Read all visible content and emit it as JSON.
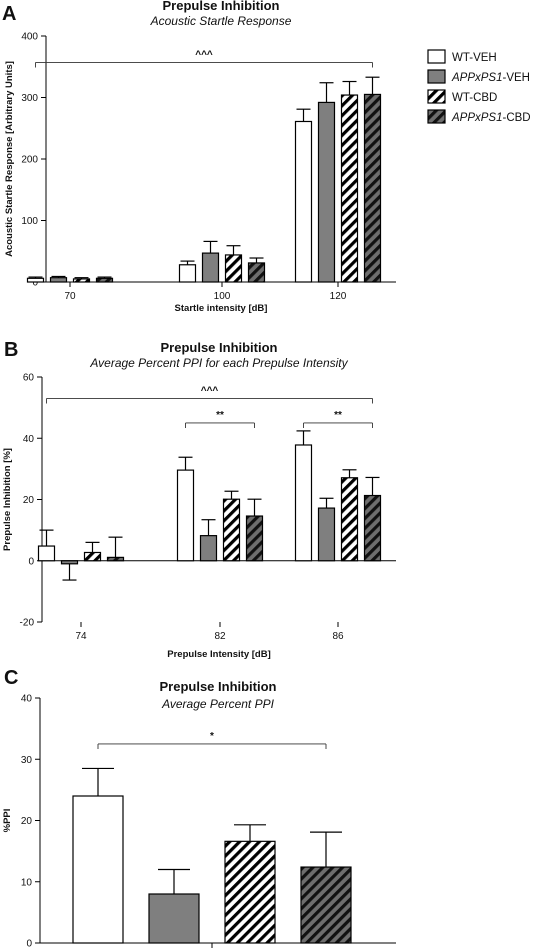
{
  "legend": [
    {
      "prefix": "",
      "italic": "",
      "suffix": "WT-VEH",
      "style": "white"
    },
    {
      "prefix": "",
      "italic": "APPxPS1",
      "suffix": "-VEH",
      "style": "gray"
    },
    {
      "prefix": "",
      "italic": "",
      "suffix": "WT-CBD",
      "style": "hatch_white"
    },
    {
      "prefix": "",
      "italic": "APPxPS1",
      "suffix": "-CBD",
      "style": "hatch_gray"
    }
  ],
  "colors": {
    "white": "#ffffff",
    "gray": "#7f7f7f",
    "hatch_gray": "#555555",
    "stroke": "#000000",
    "hatch_light_bg": "#ffffff",
    "hatch_dark_bg": "#6e6e6e"
  },
  "chart_data": [
    {
      "panel": "A",
      "type": "bar",
      "title": "Prepulse Inhibition",
      "subtitle": "Acoustic Startle Response",
      "xlabel": "Startle intensity [dB]",
      "ylabel": "Acoustic Startle Response [Arbitrary Units]",
      "ylim": [
        0,
        400
      ],
      "yticks": [
        0,
        100,
        200,
        300,
        400
      ],
      "categories": [
        "70",
        "100",
        "120"
      ],
      "series": [
        {
          "name": "WT-VEH",
          "values": [
            6,
            28,
            261
          ],
          "errors": [
            2,
            6,
            20
          ]
        },
        {
          "name": "APPxPS1-VEH",
          "values": [
            7,
            47,
            292
          ],
          "errors": [
            2,
            19,
            32
          ]
        },
        {
          "name": "WT-CBD",
          "values": [
            5,
            44,
            304
          ],
          "errors": [
            2,
            15,
            22
          ]
        },
        {
          "name": "APPxPS1-CBD",
          "values": [
            6,
            31,
            305
          ],
          "errors": [
            2,
            8,
            28
          ]
        }
      ],
      "significance": [
        {
          "label": "^^^",
          "from_category": 0,
          "to_category": 2,
          "y": 357
        }
      ]
    },
    {
      "panel": "B",
      "type": "bar",
      "title": "Prepulse Inhibition",
      "subtitle": "Average Percent PPI for each Prepulse Intensity",
      "xlabel": "Prepulse Intensity [dB]",
      "ylabel": "Prepulse Inhibition [%]",
      "ylim": [
        -20,
        60
      ],
      "yticks": [
        -20,
        0,
        20,
        40,
        60
      ],
      "categories": [
        "74",
        "82",
        "86"
      ],
      "series": [
        {
          "name": "WT-VEH",
          "values": [
            4.8,
            29.6,
            37.8
          ],
          "errors": [
            5.2,
            4.2,
            4.6
          ]
        },
        {
          "name": "APPxPS1-VEH",
          "values": [
            -1.0,
            8.2,
            17.2
          ],
          "errors": [
            5.3,
            5.2,
            3.2
          ]
        },
        {
          "name": "WT-CBD",
          "values": [
            2.7,
            20.1,
            27.1
          ],
          "errors": [
            3.3,
            2.6,
            2.6
          ]
        },
        {
          "name": "APPxPS1-CBD",
          "values": [
            1.1,
            14.6,
            21.3
          ],
          "errors": [
            6.6,
            5.5,
            5.9
          ]
        }
      ],
      "significance": [
        {
          "label": "^^^",
          "from_category": 0,
          "to_category": 2,
          "y": 53
        },
        {
          "label": "**",
          "from_category": 1,
          "to_category": 1,
          "y": 45
        },
        {
          "label": "**",
          "from_category": 2,
          "to_category": 2,
          "y": 45
        }
      ]
    },
    {
      "panel": "C",
      "type": "bar",
      "title": "Prepulse Inhibition",
      "subtitle": "Average Percent PPI",
      "xlabel": "",
      "ylabel": "%PPI",
      "ylim": [
        0,
        40
      ],
      "yticks": [
        0,
        10,
        20,
        30,
        40
      ],
      "categories": [
        ""
      ],
      "series": [
        {
          "name": "WT-VEH",
          "values": [
            24.0
          ],
          "errors": [
            4.5
          ]
        },
        {
          "name": "APPxPS1-VEH",
          "values": [
            8.0
          ],
          "errors": [
            4.0
          ]
        },
        {
          "name": "WT-CBD",
          "values": [
            16.6
          ],
          "errors": [
            2.7
          ]
        },
        {
          "name": "APPxPS1-CBD",
          "values": [
            12.4
          ],
          "errors": [
            5.7
          ]
        }
      ],
      "significance": [
        {
          "label": "*",
          "from_bar": 0,
          "to_bar": 3,
          "y": 32.5
        }
      ]
    }
  ]
}
